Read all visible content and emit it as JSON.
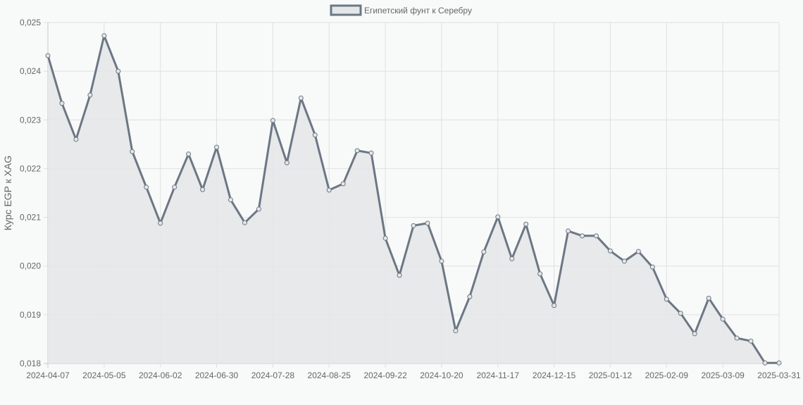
{
  "chart_data": {
    "type": "line",
    "title": "",
    "legend": {
      "label": "Египетский фунт к Серебру",
      "position": "top"
    },
    "xlabel": "",
    "ylabel": "Курс EGP к XAG",
    "ylim": [
      0.018,
      0.025
    ],
    "yticks": [
      "0,025",
      "0,024",
      "0,023",
      "0,022",
      "0,021",
      "0,020",
      "0,019",
      "0,018"
    ],
    "xticks": [
      "2024-04-07",
      "2024-05-05",
      "2024-06-02",
      "2024-06-30",
      "2024-07-28",
      "2024-08-25",
      "2024-09-22",
      "2024-10-20",
      "2024-11-17",
      "2024-12-15",
      "2025-01-12",
      "2025-02-09",
      "2025-03-09",
      "2025-03-31"
    ],
    "grid": true,
    "colors": {
      "line": "#6c7784",
      "fill": "#e4e7e8",
      "grid": "#dcdcdc",
      "background": "#f8f9f9"
    },
    "series": [
      {
        "name": "Египетский фунт к Серебру",
        "values": [
          0.02432,
          0.02334,
          0.0226,
          0.02351,
          0.02473,
          0.024,
          0.02235,
          0.02162,
          0.02088,
          0.02162,
          0.0223,
          0.02157,
          0.02244,
          0.02136,
          0.02089,
          0.02117,
          0.02299,
          0.02212,
          0.02345,
          0.02269,
          0.02156,
          0.02169,
          0.02237,
          0.02232,
          0.02057,
          0.01981,
          0.02083,
          0.02088,
          0.0201,
          0.01867,
          0.01937,
          0.02029,
          0.02101,
          0.02015,
          0.02086,
          0.01984,
          0.01919,
          0.02072,
          0.02062,
          0.02062,
          0.02031,
          0.0201,
          0.0203,
          0.01998,
          0.01932,
          0.01903,
          0.01861,
          0.01934,
          0.01891,
          0.01852,
          0.01846,
          0.01801,
          0.01801
        ]
      }
    ]
  }
}
